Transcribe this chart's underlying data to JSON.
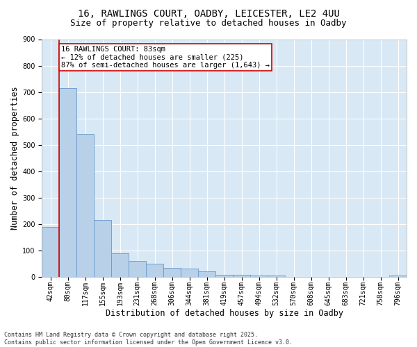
{
  "title_line1": "16, RAWLINGS COURT, OADBY, LEICESTER, LE2 4UU",
  "title_line2": "Size of property relative to detached houses in Oadby",
  "xlabel": "Distribution of detached houses by size in Oadby",
  "ylabel": "Number of detached properties",
  "bar_color": "#b8d0e8",
  "bar_edge_color": "#6699cc",
  "background_color": "#d8e8f4",
  "categories": [
    "42sqm",
    "80sqm",
    "117sqm",
    "155sqm",
    "193sqm",
    "231sqm",
    "268sqm",
    "306sqm",
    "344sqm",
    "381sqm",
    "419sqm",
    "457sqm",
    "494sqm",
    "532sqm",
    "570sqm",
    "608sqm",
    "645sqm",
    "683sqm",
    "721sqm",
    "758sqm",
    "796sqm"
  ],
  "values": [
    190,
    715,
    540,
    215,
    90,
    60,
    50,
    35,
    30,
    20,
    8,
    8,
    5,
    5,
    0,
    0,
    0,
    0,
    0,
    0,
    5
  ],
  "annotation_title": "16 RAWLINGS COURT: 83sqm",
  "annotation_line2": "← 12% of detached houses are smaller (225)",
  "annotation_line3": "87% of semi-detached houses are larger (1,643) →",
  "vline_color": "#cc0000",
  "annotation_box_color": "#cc0000",
  "ylim": [
    0,
    900
  ],
  "yticks": [
    0,
    100,
    200,
    300,
    400,
    500,
    600,
    700,
    800,
    900
  ],
  "footer_line1": "Contains HM Land Registry data © Crown copyright and database right 2025.",
  "footer_line2": "Contains public sector information licensed under the Open Government Licence v3.0.",
  "title_fontsize": 10,
  "subtitle_fontsize": 9,
  "axis_label_fontsize": 8.5,
  "tick_fontsize": 7,
  "annotation_fontsize": 7.5,
  "footer_fontsize": 6
}
